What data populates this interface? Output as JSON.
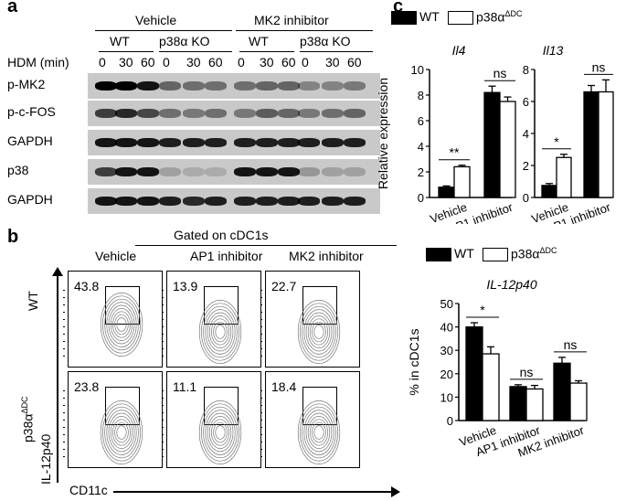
{
  "panels": {
    "a": "a",
    "b": "b",
    "c": "c"
  },
  "blot": {
    "group_vehicle": "Vehicle",
    "group_mk2": "MK2 inhibitor",
    "wt": "WT",
    "ko": "p38α  KO",
    "hdm": "HDM (min)",
    "times": [
      "0",
      "30",
      "60",
      "0",
      "30",
      "60",
      "0",
      "30",
      "60",
      "0",
      "30",
      "60"
    ],
    "rows": [
      "p-MK2",
      "p-c-FOS",
      "GAPDH",
      "p38",
      "GAPDH"
    ]
  },
  "flow": {
    "gated": "Gated on cDC1s",
    "cols": [
      "Vehicle",
      "AP1 inhibitor",
      "MK2 inhibitor"
    ],
    "row_wt": "WT",
    "row_ko_base": "p38α",
    "row_ko_sup": "ΔDC",
    "y_axis": "IL-12p40",
    "x_axis": "CD11c",
    "values": [
      [
        "43.8",
        "13.9",
        "22.7"
      ],
      [
        "23.8",
        "11.1",
        "18.4"
      ]
    ]
  },
  "legend": {
    "wt": "WT",
    "ko_base": "p38α",
    "ko_sup": "ΔDC"
  },
  "colors": {
    "wt": "#000000",
    "ko": "#ffffff",
    "blot_bg": "#c9c9c9"
  },
  "chart_data": [
    {
      "type": "bar",
      "title": "Il4",
      "ylabel": "Relative expression",
      "ylim": [
        0,
        10
      ],
      "yticks": [
        "0",
        "2",
        "4",
        "6",
        "8",
        "10"
      ],
      "categories": [
        "Vehicle",
        "AP1 inhibitor"
      ],
      "series": [
        {
          "name": "WT",
          "values": [
            0.8,
            8.2
          ],
          "err": [
            0.1,
            0.5
          ]
        },
        {
          "name": "p38αΔDC",
          "values": [
            2.4,
            7.5
          ],
          "err": [
            0.12,
            0.35
          ]
        }
      ],
      "annotations": [
        "**",
        "ns"
      ]
    },
    {
      "type": "bar",
      "title": "Il13",
      "ylim": [
        0,
        8
      ],
      "yticks": [
        "0",
        "2",
        "4",
        "6",
        "8"
      ],
      "categories": [
        "Vehicle",
        "AP1 inhibitor"
      ],
      "series": [
        {
          "name": "WT",
          "values": [
            0.75,
            6.6
          ],
          "err": [
            0.12,
            0.4
          ]
        },
        {
          "name": "p38αΔDC",
          "values": [
            2.5,
            6.6
          ],
          "err": [
            0.2,
            0.75
          ]
        }
      ],
      "annotations": [
        "*",
        "ns"
      ]
    },
    {
      "type": "bar",
      "title": "IL-12p40",
      "ylabel": "% in cDC1s",
      "ylim": [
        0,
        50
      ],
      "yticks": [
        "0",
        "10",
        "20",
        "30",
        "40",
        "50"
      ],
      "categories": [
        "Vehicle",
        "AP1 inhibitor",
        "MK2 inhibitor"
      ],
      "series": [
        {
          "name": "WT",
          "values": [
            40,
            14.5,
            24.5
          ],
          "err": [
            1.8,
            0.8,
            2.5
          ]
        },
        {
          "name": "p38αΔDC",
          "values": [
            28.5,
            13.5,
            16
          ],
          "err": [
            3.0,
            1.5,
            1.0
          ]
        }
      ],
      "annotations": [
        "*",
        "ns",
        "ns"
      ]
    }
  ]
}
